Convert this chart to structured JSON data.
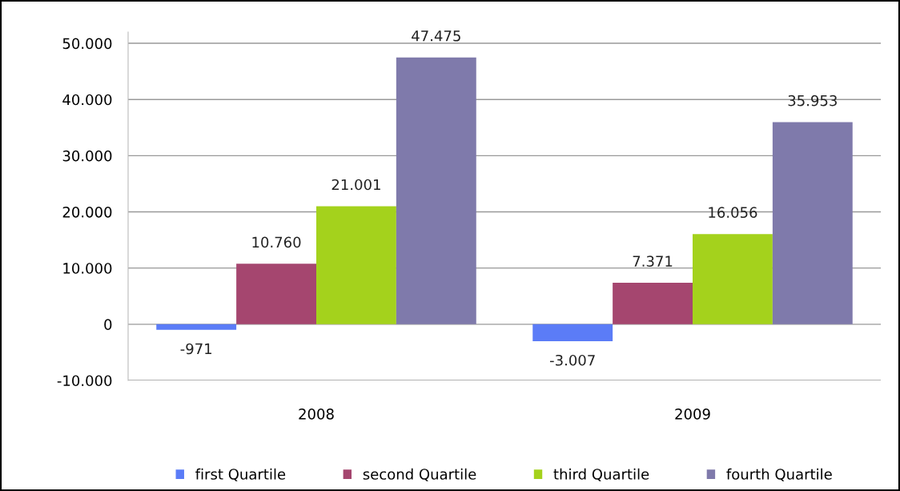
{
  "chart_data": {
    "type": "bar",
    "categories": [
      "2008",
      "2009"
    ],
    "series": [
      {
        "name": "first Quartile",
        "color": "#5b7cf7",
        "values": [
          -971,
          -3007
        ],
        "value_labels": [
          "-971",
          "-3.007"
        ]
      },
      {
        "name": "second Quartile",
        "color": "#a5466f",
        "values": [
          10760,
          7371
        ],
        "value_labels": [
          "10.760",
          "7.371"
        ]
      },
      {
        "name": "third Quartile",
        "color": "#a4d21c",
        "values": [
          21001,
          16056
        ],
        "value_labels": [
          "21.001",
          "16.056"
        ]
      },
      {
        "name": "fourth Quartile",
        "color": "#7f7aab",
        "values": [
          47475,
          35953
        ],
        "value_labels": [
          "47.475",
          "35.953"
        ]
      }
    ],
    "ylim": [
      -10000,
      52000
    ],
    "yticks": [
      {
        "value": -10000,
        "label": "-10.000"
      },
      {
        "value": 0,
        "label": "0"
      },
      {
        "value": 10000,
        "label": "10.000"
      },
      {
        "value": 20000,
        "label": "20.000"
      },
      {
        "value": 30000,
        "label": "30.000"
      },
      {
        "value": 40000,
        "label": "40.000"
      },
      {
        "value": 50000,
        "label": "50.000"
      }
    ],
    "grid": "y",
    "legend": "bottom"
  }
}
